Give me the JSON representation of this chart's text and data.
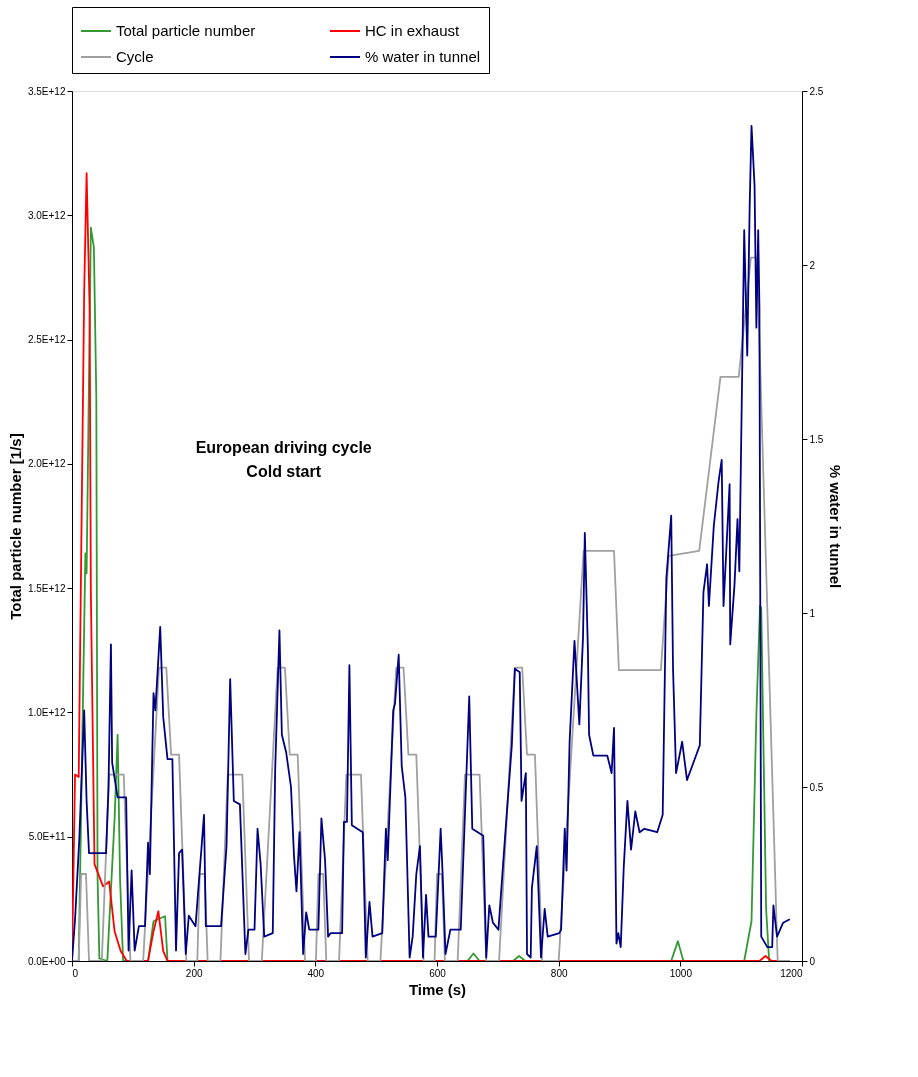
{
  "chart_data": {
    "type": "line",
    "xlabel": "Time (s)",
    "ylabel": "Total particle number [1/s]",
    "y2label": "% water in tunnel",
    "annotations": [
      "European driving cycle\nCold start"
    ],
    "xlim": [
      0,
      1200
    ],
    "xticks": [
      0,
      200,
      400,
      600,
      800,
      1000,
      1200
    ],
    "ylim": [
      0,
      3500000000000.0
    ],
    "yticks": [
      {
        "value": 0,
        "label": "0.0E+00"
      },
      {
        "value": 500000000000.0,
        "label": "5.0E+11"
      },
      {
        "value": 1000000000000.0,
        "label": "1.0E+12"
      },
      {
        "value": 1500000000000.0,
        "label": "1.5E+12"
      },
      {
        "value": 2000000000000.0,
        "label": "2.0E+12"
      },
      {
        "value": 2500000000000.0,
        "label": "2.5E+12"
      },
      {
        "value": 3000000000000.0,
        "label": "3.0E+12"
      },
      {
        "value": 3500000000000.0,
        "label": "3.5E+12"
      }
    ],
    "y2lim": [
      0,
      2.5
    ],
    "y2ticks": [
      0,
      0.5,
      1,
      1.5,
      2,
      2.5
    ],
    "grid": false,
    "legend": "top",
    "series": [
      {
        "name": "Total particle number",
        "color": "#339933",
        "x": [
          0,
          11,
          22,
          24,
          31,
          36,
          40,
          42,
          45,
          58,
          70,
          75,
          79,
          84,
          125,
          134,
          153,
          157,
          650,
          660,
          670,
          725,
          735,
          745,
          985,
          996,
          1005,
          1105,
          1117,
          1125,
          1131,
          1133,
          1141,
          1146,
          1180
        ],
        "values": [
          0,
          0,
          1640000000000.0,
          1560000000000.0,
          2950000000000.0,
          2870000000000.0,
          2260000000000.0,
          340000000000.0,
          10000000000.0,
          0,
          570000000000.0,
          910000000000.0,
          330000000000.0,
          0,
          0,
          160000000000.0,
          180000000000.0,
          0,
          0,
          30000000000.0,
          0,
          0,
          20000000000.0,
          0,
          0,
          80000000000.0,
          0,
          0,
          160000000000.0,
          990000000000.0,
          1430000000000.0,
          1420000000000.0,
          210000000000.0,
          0,
          0
        ]
      },
      {
        "name": "HC in exhaust",
        "color": "#ff0000",
        "x": [
          0,
          5,
          11,
          20,
          24,
          29,
          31,
          37,
          51,
          61,
          70,
          80,
          90,
          125,
          134,
          142,
          150,
          157,
          1130,
          1140,
          1150,
          1180
        ],
        "values": [
          0,
          750000000000.0,
          740000000000.0,
          2690000000000.0,
          3170000000000.0,
          2620000000000.0,
          1480000000000.0,
          390000000000.0,
          300000000000.0,
          320000000000.0,
          120000000000.0,
          40000000000.0,
          0,
          0,
          120000000000.0,
          200000000000.0,
          40000000000.0,
          0,
          0,
          20000000000.0,
          0,
          0
        ]
      },
      {
        "name": "Cycle",
        "color": "#a0a0a0",
        "x": [
          0,
          11,
          15,
          23,
          28,
          49,
          61,
          85,
          96,
          117,
          143,
          155,
          163,
          176,
          188,
          206,
          210,
          218,
          223,
          244,
          256,
          280,
          291,
          312,
          338,
          350,
          358,
          371,
          383,
          401,
          405,
          413,
          418,
          439,
          451,
          475,
          486,
          507,
          533,
          545,
          553,
          566,
          578,
          596,
          600,
          608,
          613,
          634,
          646,
          670,
          681,
          702,
          728,
          740,
          748,
          761,
          773,
          800,
          841,
          891,
          899,
          968,
          981,
          1031,
          1066,
          1096,
          1116,
          1126,
          1160,
          1180
        ],
        "values": [
          0,
          0,
          350000000000.0,
          350000000000.0,
          0,
          0,
          750000000000.0,
          750000000000.0,
          0,
          0,
          1180000000000.0,
          1180000000000.0,
          830000000000.0,
          830000000000.0,
          0,
          0,
          350000000000.0,
          350000000000.0,
          0,
          0,
          750000000000.0,
          750000000000.0,
          0,
          0,
          1180000000000.0,
          1180000000000.0,
          830000000000.0,
          830000000000.0,
          0,
          0,
          350000000000.0,
          350000000000.0,
          0,
          0,
          750000000000.0,
          750000000000.0,
          0,
          0,
          1180000000000.0,
          1180000000000.0,
          830000000000.0,
          830000000000.0,
          0,
          0,
          350000000000.0,
          350000000000.0,
          0,
          0,
          750000000000.0,
          750000000000.0,
          0,
          0,
          1180000000000.0,
          1180000000000.0,
          830000000000.0,
          830000000000.0,
          0,
          0,
          1650000000000.0,
          1650000000000.0,
          1170000000000.0,
          1170000000000.0,
          1630000000000.0,
          1650000000000.0,
          2350000000000.0,
          2350000000000.0,
          2830000000000.0,
          2830000000000.0,
          0,
          0
        ]
      },
      {
        "name": "% water in tunnel",
        "color": "#000080",
        "axis": "y2",
        "x": [
          0,
          5,
          12,
          20,
          24,
          28,
          56,
          60,
          64,
          66,
          75,
          89,
          93,
          98,
          103,
          110,
          120,
          125,
          128,
          134,
          137,
          145,
          150,
          157,
          165,
          171,
          176,
          181,
          187,
          192,
          203,
          217,
          220,
          245,
          254,
          260,
          266,
          276,
          285,
          290,
          300,
          305,
          310,
          316,
          330,
          334,
          341,
          345,
          352,
          360,
          365,
          369,
          374,
          380,
          385,
          390,
          405,
          410,
          416,
          421,
          425,
          444,
          447,
          452,
          456,
          460,
          478,
          483,
          489,
          494,
          510,
          516,
          519,
          528,
          531,
          537,
          542,
          548,
          555,
          560,
          566,
          572,
          577,
          582,
          586,
          598,
          606,
          609,
          614,
          622,
          639,
          653,
          658,
          676,
          681,
          686,
          692,
          701,
          712,
          723,
          728,
          736,
          739,
          746,
          748,
          754,
          756,
          764,
          771,
          777,
          782,
          801,
          804,
          810,
          813,
          818,
          826,
          834,
          840,
          843,
          848,
          850,
          857,
          880,
          887,
          891,
          895,
          898,
          902,
          907,
          913,
          919,
          926,
          933,
          941,
          962,
          971,
          977,
          985,
          988,
          993,
          1003,
          1011,
          1032,
          1038,
          1044,
          1047,
          1055,
          1063,
          1068,
          1071,
          1081,
          1082,
          1089,
          1094,
          1097,
          1105,
          1110,
          1114,
          1117,
          1122,
          1125,
          1128,
          1130,
          1133,
          1143,
          1151,
          1153,
          1159,
          1169,
          1180
        ],
        "values": [
          0,
          0.12,
          0.35,
          0.72,
          0.46,
          0.31,
          0.31,
          0.5,
          0.91,
          0.57,
          0.47,
          0.47,
          0.03,
          0.26,
          0.03,
          0.1,
          0.1,
          0.34,
          0.25,
          0.77,
          0.72,
          0.96,
          0.7,
          0.58,
          0.58,
          0.03,
          0.31,
          0.32,
          0.02,
          0.13,
          0.1,
          0.42,
          0.1,
          0.1,
          0.33,
          0.81,
          0.46,
          0.45,
          0.02,
          0.09,
          0.09,
          0.38,
          0.28,
          0.07,
          0.08,
          0.55,
          0.95,
          0.65,
          0.6,
          0.5,
          0.3,
          0.2,
          0.37,
          0.02,
          0.14,
          0.09,
          0.09,
          0.41,
          0.29,
          0.07,
          0.08,
          0.08,
          0.4,
          0.4,
          0.85,
          0.39,
          0.37,
          0.01,
          0.17,
          0.07,
          0.08,
          0.38,
          0.29,
          0.72,
          0.74,
          0.88,
          0.56,
          0.47,
          0.01,
          0.07,
          0.25,
          0.33,
          0.01,
          0.19,
          0.07,
          0.07,
          0.38,
          0.26,
          0.02,
          0.09,
          0.09,
          0.76,
          0.38,
          0.36,
          0.01,
          0.16,
          0.11,
          0.09,
          0.36,
          0.62,
          0.84,
          0.83,
          0.46,
          0.54,
          0.02,
          0.01,
          0.21,
          0.33,
          0.01,
          0.15,
          0.07,
          0.08,
          0.09,
          0.38,
          0.26,
          0.63,
          0.92,
          0.68,
          0.93,
          1.23,
          0.9,
          0.65,
          0.59,
          0.59,
          0.54,
          0.67,
          0.05,
          0.08,
          0.04,
          0.27,
          0.46,
          0.32,
          0.43,
          0.37,
          0.38,
          0.37,
          0.42,
          1.1,
          1.28,
          0.84,
          0.54,
          0.63,
          0.52,
          0.62,
          1.06,
          1.14,
          1.02,
          1.25,
          1.38,
          1.44,
          1.02,
          1.37,
          0.91,
          1.08,
          1.27,
          1.12,
          2.1,
          1.74,
          2.17,
          2.4,
          2.23,
          1.82,
          2.1,
          1.88,
          0.07,
          0.04,
          0.04,
          0.16,
          0.07,
          0.11,
          0.12
        ]
      }
    ]
  }
}
